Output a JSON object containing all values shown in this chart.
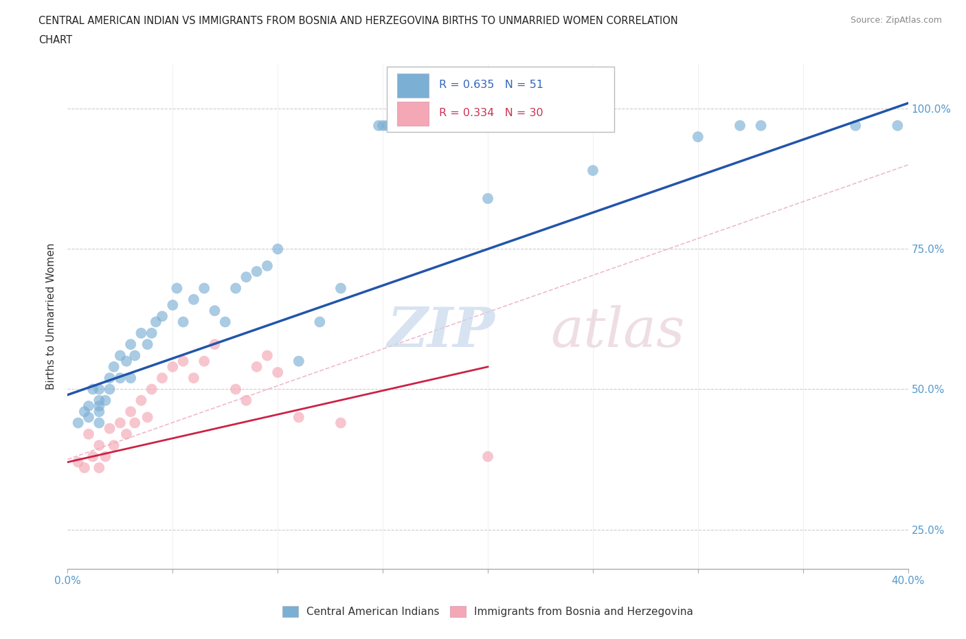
{
  "title_line1": "CENTRAL AMERICAN INDIAN VS IMMIGRANTS FROM BOSNIA AND HERZEGOVINA BIRTHS TO UNMARRIED WOMEN CORRELATION",
  "title_line2": "CHART",
  "source": "Source: ZipAtlas.com",
  "ylabel": "Births to Unmarried Women",
  "xlim": [
    0.0,
    0.4
  ],
  "ylim": [
    0.18,
    1.08
  ],
  "xticks": [
    0.0,
    0.05,
    0.1,
    0.15,
    0.2,
    0.25,
    0.3,
    0.35,
    0.4
  ],
  "yticks": [
    0.25,
    0.5,
    0.75,
    1.0
  ],
  "ytick_labels": [
    "25.0%",
    "50.0%",
    "75.0%",
    "100.0%"
  ],
  "grid_color": "#cccccc",
  "blue_color": "#7bafd4",
  "pink_color": "#f4a7b5",
  "blue_line_color": "#2255aa",
  "pink_line_color": "#cc2244",
  "legend_r1": "R = 0.635",
  "legend_n1": "N = 51",
  "legend_r2": "R = 0.334",
  "legend_n2": "N = 30",
  "legend_label1": "Central American Indians",
  "legend_label2": "Immigrants from Bosnia and Herzegovina",
  "blue_x": [
    0.005,
    0.008,
    0.01,
    0.01,
    0.012,
    0.015,
    0.015,
    0.015,
    0.015,
    0.015,
    0.018,
    0.02,
    0.02,
    0.022,
    0.025,
    0.025,
    0.028,
    0.03,
    0.03,
    0.032,
    0.035,
    0.038,
    0.04,
    0.042,
    0.045,
    0.05,
    0.052,
    0.055,
    0.06,
    0.065,
    0.07,
    0.075,
    0.08,
    0.085,
    0.09,
    0.095,
    0.1,
    0.11,
    0.12,
    0.13,
    0.148,
    0.15,
    0.152,
    0.155,
    0.2,
    0.25,
    0.3,
    0.32,
    0.33,
    0.375,
    0.395
  ],
  "blue_y": [
    0.44,
    0.46,
    0.45,
    0.47,
    0.5,
    0.44,
    0.46,
    0.47,
    0.48,
    0.5,
    0.48,
    0.5,
    0.52,
    0.54,
    0.52,
    0.56,
    0.55,
    0.52,
    0.58,
    0.56,
    0.6,
    0.58,
    0.6,
    0.62,
    0.63,
    0.65,
    0.68,
    0.62,
    0.66,
    0.68,
    0.64,
    0.62,
    0.68,
    0.7,
    0.71,
    0.72,
    0.75,
    0.55,
    0.62,
    0.68,
    0.97,
    0.97,
    0.97,
    0.97,
    0.84,
    0.89,
    0.95,
    0.97,
    0.97,
    0.97,
    0.97
  ],
  "pink_x": [
    0.005,
    0.008,
    0.01,
    0.012,
    0.015,
    0.015,
    0.018,
    0.02,
    0.022,
    0.025,
    0.028,
    0.03,
    0.032,
    0.035,
    0.038,
    0.04,
    0.045,
    0.05,
    0.055,
    0.06,
    0.065,
    0.07,
    0.08,
    0.085,
    0.09,
    0.095,
    0.1,
    0.11,
    0.13,
    0.2
  ],
  "pink_y": [
    0.37,
    0.36,
    0.42,
    0.38,
    0.36,
    0.4,
    0.38,
    0.43,
    0.4,
    0.44,
    0.42,
    0.46,
    0.44,
    0.48,
    0.45,
    0.5,
    0.52,
    0.54,
    0.55,
    0.52,
    0.55,
    0.58,
    0.5,
    0.48,
    0.54,
    0.56,
    0.53,
    0.45,
    0.44,
    0.38
  ],
  "blue_line_x": [
    0.0,
    0.4
  ],
  "blue_line_y": [
    0.49,
    1.01
  ],
  "pink_line_x": [
    0.0,
    0.2
  ],
  "pink_line_y": [
    0.37,
    0.54
  ],
  "diag_line_x": [
    0.0,
    0.4
  ],
  "diag_line_y": [
    0.375,
    0.9
  ]
}
